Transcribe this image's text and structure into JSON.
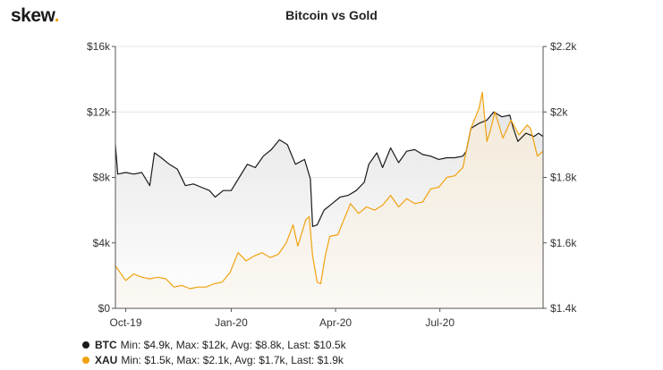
{
  "brand": {
    "name": "skew",
    "dot": "."
  },
  "chart_data": {
    "type": "line",
    "title": "Bitcoin vs Gold",
    "x_ticks": [
      "Oct-19",
      "Jan-20",
      "Apr-20",
      "Jul-20"
    ],
    "x_tick_dates": [
      "2019-10-01",
      "2020-01-01",
      "2020-04-01",
      "2020-07-01"
    ],
    "x_range": [
      "2019-09-22",
      "2020-09-29"
    ],
    "y_left": {
      "ticks": [
        "$0",
        "$4k",
        "$8k",
        "$12k",
        "$16k"
      ],
      "range": [
        0,
        16000
      ]
    },
    "y_right": {
      "ticks": [
        "$1.4k",
        "$1.6k",
        "$1.8k",
        "$2k",
        "$2.2k"
      ],
      "range": [
        1400,
        2200
      ]
    },
    "grid": "horizontal",
    "series": [
      {
        "name": "BTC",
        "axis": "left",
        "color": "#1a1a1a",
        "stats": "Min: $4.9k, Max: $12k, Avg: $8.8k, Last: $10.5k",
        "points": [
          [
            "2019-09-22",
            10000
          ],
          [
            "2019-09-24",
            8200
          ],
          [
            "2019-10-01",
            8300
          ],
          [
            "2019-10-08",
            8200
          ],
          [
            "2019-10-15",
            8300
          ],
          [
            "2019-10-22",
            7500
          ],
          [
            "2019-10-26",
            9500
          ],
          [
            "2019-11-01",
            9200
          ],
          [
            "2019-11-08",
            8800
          ],
          [
            "2019-11-15",
            8500
          ],
          [
            "2019-11-22",
            7500
          ],
          [
            "2019-11-29",
            7600
          ],
          [
            "2019-12-06",
            7400
          ],
          [
            "2019-12-13",
            7200
          ],
          [
            "2019-12-18",
            6800
          ],
          [
            "2019-12-25",
            7200
          ],
          [
            "2020-01-01",
            7200
          ],
          [
            "2020-01-08",
            8000
          ],
          [
            "2020-01-15",
            8800
          ],
          [
            "2020-01-22",
            8600
          ],
          [
            "2020-01-29",
            9300
          ],
          [
            "2020-02-05",
            9700
          ],
          [
            "2020-02-12",
            10300
          ],
          [
            "2020-02-19",
            10000
          ],
          [
            "2020-02-26",
            8800
          ],
          [
            "2020-03-05",
            9100
          ],
          [
            "2020-03-10",
            7900
          ],
          [
            "2020-03-12",
            5000
          ],
          [
            "2020-03-16",
            5100
          ],
          [
            "2020-03-22",
            6000
          ],
          [
            "2020-03-29",
            6400
          ],
          [
            "2020-04-05",
            6800
          ],
          [
            "2020-04-12",
            6900
          ],
          [
            "2020-04-19",
            7200
          ],
          [
            "2020-04-26",
            7700
          ],
          [
            "2020-04-30",
            8800
          ],
          [
            "2020-05-07",
            9500
          ],
          [
            "2020-05-12",
            8600
          ],
          [
            "2020-05-19",
            9800
          ],
          [
            "2020-05-26",
            8900
          ],
          [
            "2020-06-02",
            9600
          ],
          [
            "2020-06-09",
            9700
          ],
          [
            "2020-06-16",
            9400
          ],
          [
            "2020-06-23",
            9300
          ],
          [
            "2020-06-30",
            9100
          ],
          [
            "2020-07-07",
            9200
          ],
          [
            "2020-07-14",
            9200
          ],
          [
            "2020-07-21",
            9300
          ],
          [
            "2020-07-24",
            9600
          ],
          [
            "2020-07-28",
            11000
          ],
          [
            "2020-08-04",
            11300
          ],
          [
            "2020-08-11",
            11500
          ],
          [
            "2020-08-17",
            12000
          ],
          [
            "2020-08-24",
            11700
          ],
          [
            "2020-08-31",
            11800
          ],
          [
            "2020-09-03",
            11000
          ],
          [
            "2020-09-07",
            10200
          ],
          [
            "2020-09-14",
            10700
          ],
          [
            "2020-09-21",
            10500
          ],
          [
            "2020-09-25",
            10700
          ],
          [
            "2020-09-29",
            10500
          ]
        ]
      },
      {
        "name": "XAU",
        "axis": "right",
        "color": "#f0a20f",
        "stats": "Min: $1.5k, Max: $2.1k, Avg: $1.7k, Last: $1.9k",
        "points": [
          [
            "2019-09-22",
            1530
          ],
          [
            "2019-09-26",
            1510
          ],
          [
            "2019-10-01",
            1485
          ],
          [
            "2019-10-08",
            1505
          ],
          [
            "2019-10-15",
            1495
          ],
          [
            "2019-10-22",
            1490
          ],
          [
            "2019-10-29",
            1495
          ],
          [
            "2019-11-05",
            1490
          ],
          [
            "2019-11-12",
            1465
          ],
          [
            "2019-11-19",
            1470
          ],
          [
            "2019-11-26",
            1460
          ],
          [
            "2019-12-03",
            1465
          ],
          [
            "2019-12-10",
            1465
          ],
          [
            "2019-12-17",
            1475
          ],
          [
            "2019-12-24",
            1480
          ],
          [
            "2019-12-31",
            1510
          ],
          [
            "2020-01-07",
            1570
          ],
          [
            "2020-01-14",
            1545
          ],
          [
            "2020-01-21",
            1560
          ],
          [
            "2020-01-28",
            1570
          ],
          [
            "2020-02-04",
            1555
          ],
          [
            "2020-02-11",
            1565
          ],
          [
            "2020-02-18",
            1600
          ],
          [
            "2020-02-24",
            1655
          ],
          [
            "2020-02-28",
            1590
          ],
          [
            "2020-03-06",
            1670
          ],
          [
            "2020-03-09",
            1680
          ],
          [
            "2020-03-12",
            1560
          ],
          [
            "2020-03-16",
            1480
          ],
          [
            "2020-03-19",
            1475
          ],
          [
            "2020-03-23",
            1560
          ],
          [
            "2020-03-27",
            1620
          ],
          [
            "2020-04-03",
            1625
          ],
          [
            "2020-04-07",
            1660
          ],
          [
            "2020-04-14",
            1720
          ],
          [
            "2020-04-21",
            1690
          ],
          [
            "2020-04-28",
            1710
          ],
          [
            "2020-05-05",
            1700
          ],
          [
            "2020-05-12",
            1715
          ],
          [
            "2020-05-19",
            1745
          ],
          [
            "2020-05-26",
            1710
          ],
          [
            "2020-06-02",
            1735
          ],
          [
            "2020-06-09",
            1720
          ],
          [
            "2020-06-16",
            1725
          ],
          [
            "2020-06-23",
            1765
          ],
          [
            "2020-06-30",
            1770
          ],
          [
            "2020-07-07",
            1800
          ],
          [
            "2020-07-14",
            1805
          ],
          [
            "2020-07-21",
            1830
          ],
          [
            "2020-07-28",
            1950
          ],
          [
            "2020-08-04",
            2010
          ],
          [
            "2020-08-07",
            2060
          ],
          [
            "2020-08-11",
            1910
          ],
          [
            "2020-08-14",
            1945
          ],
          [
            "2020-08-18",
            2000
          ],
          [
            "2020-08-25",
            1920
          ],
          [
            "2020-09-01",
            1975
          ],
          [
            "2020-09-08",
            1930
          ],
          [
            "2020-09-15",
            1960
          ],
          [
            "2020-09-18",
            1950
          ],
          [
            "2020-09-24",
            1865
          ],
          [
            "2020-09-29",
            1880
          ]
        ]
      }
    ]
  }
}
